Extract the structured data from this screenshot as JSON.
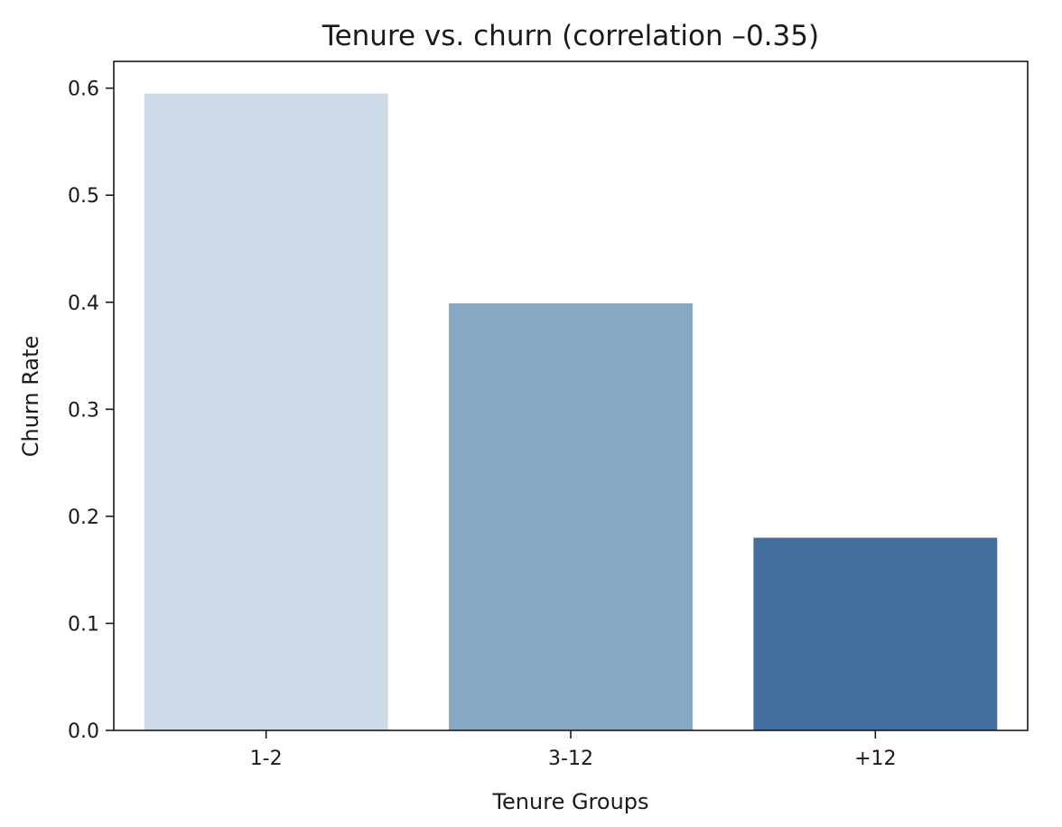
{
  "chart_data": {
    "type": "bar",
    "title": "Tenure vs. churn (correlation –0.35)",
    "xlabel": "Tenure Groups",
    "ylabel": "Churn Rate",
    "categories": [
      "1-2",
      "3-12",
      "+12"
    ],
    "values": [
      0.595,
      0.399,
      0.18
    ],
    "ylim": [
      0,
      0.625
    ],
    "yticks": [
      "0.0",
      "0.1",
      "0.2",
      "0.3",
      "0.4",
      "0.5",
      "0.6"
    ],
    "colors": [
      "#cddbe8",
      "#85a8c5",
      "#446e9e"
    ],
    "grid": false,
    "legend": "none"
  }
}
